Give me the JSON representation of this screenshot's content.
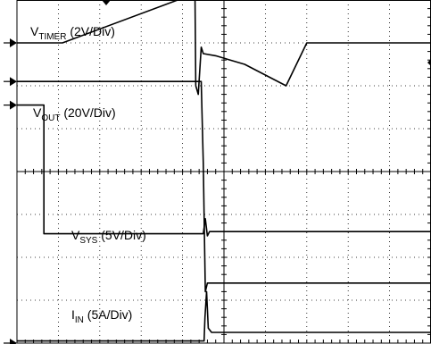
{
  "chart_data": {
    "type": "line",
    "title": "",
    "xlabel": "",
    "ylabel": "",
    "grid": true,
    "grid_divisions": {
      "x": 10,
      "y": 8
    },
    "x_range_div": [
      0,
      10
    ],
    "y_range_div": [
      0,
      8
    ],
    "series": [
      {
        "name": "VTIMER (2V/Div)",
        "label_main": "V",
        "label_sub": "TIMER",
        "label_rest": " (2V/Div)",
        "scale": "2V/Div",
        "ground_div": 7.0,
        "x_div": [
          0.0,
          1.1,
          4.3,
          4.32,
          4.38,
          4.45,
          4.5,
          4.8,
          5.5,
          6.5,
          7.0,
          10.0
        ],
        "y_div": [
          7.0,
          7.0,
          8.15,
          6.0,
          5.8,
          6.9,
          6.75,
          6.7,
          6.5,
          6.0,
          7.0,
          7.0
        ]
      },
      {
        "name": "VOUT (20V/Div)",
        "label_main": "V",
        "label_sub": "OUT",
        "label_rest": " (20V/Div)",
        "scale": "20V/Div",
        "ground_div": 6.1,
        "x_div": [
          0.0,
          4.45,
          4.5,
          4.55,
          4.6,
          10.0
        ],
        "y_div": [
          6.1,
          6.1,
          4.2,
          1.2,
          1.4,
          1.4
        ]
      },
      {
        "name": "VSYS (5V/Div)",
        "label_main": "V",
        "label_sub": "SYS",
        "label_rest": " (5V/Div)",
        "scale": "5V/Div",
        "ground_div": 5.55,
        "x_div": [
          0.0,
          0.65,
          0.65,
          4.5,
          4.55,
          4.6,
          4.65,
          10.0
        ],
        "y_div": [
          5.55,
          5.55,
          2.55,
          2.55,
          2.9,
          2.5,
          2.6,
          2.6
        ]
      },
      {
        "name": "IIN (5A/Div)",
        "label_main": "I",
        "label_sub": "IN",
        "label_rest": " (5A/Div)",
        "scale": "5A/Div",
        "ground_div": 0.0,
        "x_div": [
          0.0,
          4.52,
          4.54,
          4.58,
          4.62,
          4.7,
          10.0
        ],
        "y_div": [
          0.05,
          0.05,
          0.6,
          1.2,
          0.35,
          0.25,
          0.25
        ]
      }
    ]
  }
}
